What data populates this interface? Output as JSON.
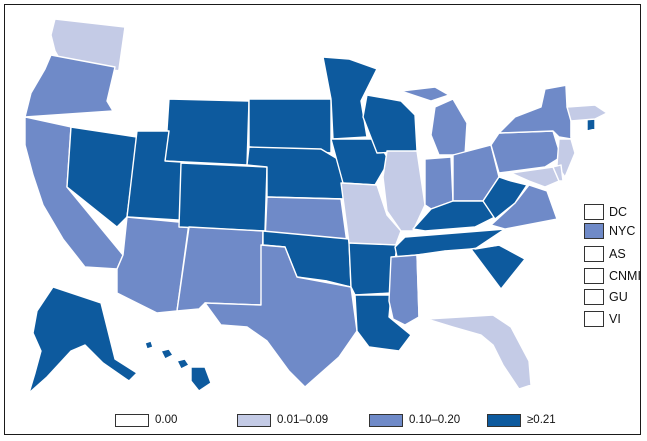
{
  "colors": {
    "c0": "#ffffff",
    "c1": "#c4cbe6",
    "c2": "#6f8ac8",
    "c3": "#0d5a9e"
  },
  "legend": [
    {
      "label": "0.00",
      "color_class": "c0"
    },
    {
      "label": "0.01–0.09",
      "color_class": "c1"
    },
    {
      "label": "0.10–0.20",
      "color_class": "c2"
    },
    {
      "label": "≥0.21",
      "color_class": "c3"
    }
  ],
  "territories": [
    {
      "label": "DC",
      "color_class": "c0"
    },
    {
      "label": "NYC",
      "color_class": "c2"
    },
    {
      "label": "AS",
      "color_class": "c0"
    },
    {
      "label": "CNMI",
      "color_class": "c0"
    },
    {
      "label": "GU",
      "color_class": "c0"
    },
    {
      "label": "VI",
      "color_class": "c0"
    }
  ],
  "states": {
    "WA": "c1",
    "OR": "c2",
    "CA": "c2",
    "NV": "c3",
    "ID": "c0",
    "MT": "c0",
    "WY": "c3",
    "UT": "c3",
    "AZ": "c2",
    "CO": "c3",
    "NM": "c2",
    "ND": "c0",
    "SD": "c3",
    "NE": "c3",
    "KS": "c2",
    "OK": "c3",
    "TX": "c2",
    "MN": "c3",
    "IA": "c3",
    "MO": "c1",
    "AR": "c3",
    "LA": "c3",
    "WI": "c3",
    "IL": "c1",
    "MI": "c2",
    "IN": "c2",
    "OH": "c2",
    "KY": "c3",
    "TN": "c3",
    "MS": "c2",
    "AL": "c0",
    "GA": "c0",
    "FL": "c1",
    "SC": "c3",
    "NC": "c0",
    "VA": "c2",
    "WV": "c3",
    "PA": "c2",
    "NY": "c2",
    "NJ": "c1",
    "DE": "c1",
    "MD": "c1",
    "CT": "c0",
    "RI": "c3",
    "MA": "c1",
    "VT": "c0",
    "NH": "c0",
    "ME": "c0",
    "AK": "c3",
    "HI": "c3",
    "PR": "c0"
  }
}
